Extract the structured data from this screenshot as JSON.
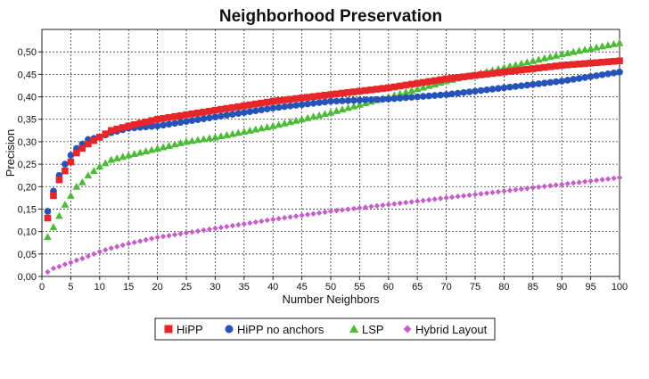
{
  "chart_data": {
    "type": "scatter",
    "title": "Neighborhood Preservation",
    "xlabel": "Number Neighbors",
    "ylabel": "Precision",
    "xlim": [
      0,
      100
    ],
    "ylim": [
      0,
      0.55
    ],
    "x_ticks": [
      "0",
      "5",
      "10",
      "15",
      "20",
      "25",
      "30",
      "35",
      "40",
      "45",
      "50",
      "55",
      "60",
      "65",
      "70",
      "75",
      "80",
      "85",
      "90",
      "95",
      "100"
    ],
    "y_ticks": [
      "0,00",
      "0,05",
      "0,10",
      "0,15",
      "0,20",
      "0,25",
      "0,30",
      "0,35",
      "0,40",
      "0,45",
      "0,50"
    ],
    "grid": true,
    "legend_position": "bottom",
    "series": [
      {
        "name": "HiPP",
        "color": "#e8262a",
        "marker": "square",
        "x": [
          1,
          2,
          3,
          4,
          5,
          6,
          7,
          8,
          10,
          12,
          15,
          20,
          25,
          30,
          40,
          50,
          60,
          70,
          80,
          90,
          100
        ],
        "y": [
          0.13,
          0.18,
          0.215,
          0.235,
          0.255,
          0.275,
          0.285,
          0.295,
          0.31,
          0.325,
          0.335,
          0.35,
          0.36,
          0.37,
          0.39,
          0.405,
          0.42,
          0.44,
          0.455,
          0.47,
          0.48
        ]
      },
      {
        "name": "HiPP no anchors",
        "color": "#2553b8",
        "marker": "circle",
        "x": [
          1,
          2,
          3,
          4,
          5,
          6,
          7,
          8,
          10,
          12,
          15,
          20,
          25,
          30,
          40,
          50,
          60,
          70,
          80,
          90,
          100
        ],
        "y": [
          0.145,
          0.19,
          0.225,
          0.25,
          0.27,
          0.285,
          0.295,
          0.305,
          0.31,
          0.32,
          0.33,
          0.335,
          0.345,
          0.355,
          0.375,
          0.39,
          0.395,
          0.405,
          0.42,
          0.435,
          0.455
        ]
      },
      {
        "name": "LSP",
        "color": "#4dbb38",
        "marker": "triangle",
        "x": [
          1,
          2,
          3,
          4,
          5,
          6,
          7,
          8,
          10,
          12,
          15,
          20,
          25,
          30,
          40,
          50,
          60,
          70,
          80,
          90,
          100
        ],
        "y": [
          0.088,
          0.11,
          0.135,
          0.16,
          0.18,
          0.2,
          0.21,
          0.225,
          0.245,
          0.26,
          0.27,
          0.285,
          0.3,
          0.31,
          0.335,
          0.365,
          0.4,
          0.435,
          0.465,
          0.495,
          0.52
        ]
      },
      {
        "name": "Hybrid Layout",
        "color": "#c45ec8",
        "marker": "diamond",
        "x": [
          1,
          2,
          3,
          4,
          5,
          6,
          7,
          8,
          10,
          12,
          15,
          20,
          25,
          30,
          40,
          50,
          60,
          70,
          80,
          90,
          100
        ],
        "y": [
          0.01,
          0.018,
          0.022,
          0.027,
          0.031,
          0.036,
          0.04,
          0.045,
          0.055,
          0.063,
          0.073,
          0.087,
          0.097,
          0.107,
          0.127,
          0.145,
          0.16,
          0.175,
          0.19,
          0.205,
          0.22
        ]
      }
    ]
  }
}
